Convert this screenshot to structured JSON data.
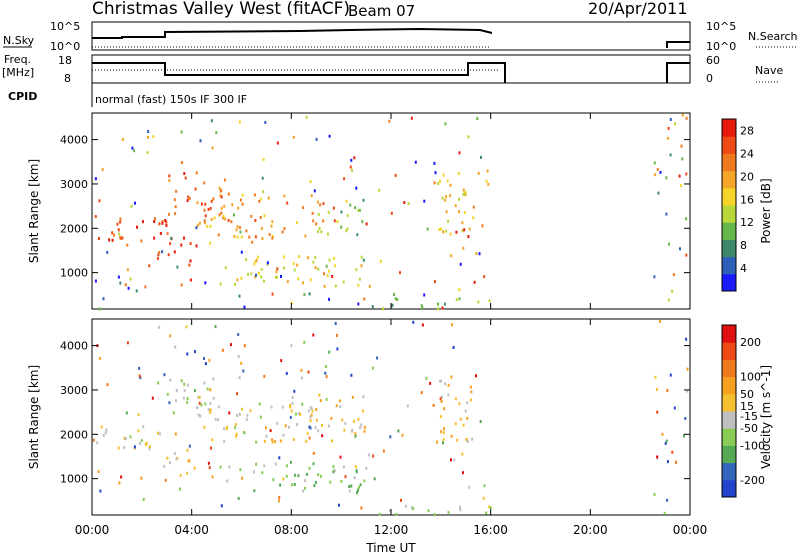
{
  "header": {
    "title": "Christmas Valley West (fitACF)",
    "beam": "Beam 07",
    "date": "20/Apr/2011"
  },
  "top_panels": {
    "nsky_label": "N.Sky",
    "nsky_top_tick": "10^5",
    "nsky_bottom_tick": "10^0",
    "nsearch_label": "N.Search",
    "freq_label_line1": "Freq.",
    "freq_label_line2": "[MHz]",
    "freq_ticks": [
      "18",
      "8"
    ],
    "nave_ticks": [
      "60",
      "0"
    ],
    "nave_label": "Nave",
    "cpid_label": "CPID",
    "cpid_text": "normal (fast)   150s IF   300 IF"
  },
  "colors": {
    "power_scale": [
      "#1a1aff",
      "#2e5fb8",
      "#3c8a6b",
      "#66b84a",
      "#b8d83a",
      "#f5d52a",
      "#f5a52a",
      "#f07a20",
      "#ee4a15",
      "#e61a0a"
    ],
    "velocity_scale": [
      "#2244cc",
      "#3366bb",
      "#55aa55",
      "#88cc55",
      "#c0c0c0",
      "#f5c030",
      "#f5a020",
      "#f07a20",
      "#ee4a15",
      "#e01010"
    ]
  },
  "chart_data": [
    {
      "type": "heatmap",
      "title": "Power",
      "xlabel": "Time UT",
      "ylabel": "Slant Range [km]",
      "x_ticks": [
        "00:00",
        "04:00",
        "08:00",
        "12:00",
        "16:00",
        "20:00",
        "00:00"
      ],
      "xlim_hours": [
        0,
        24
      ],
      "ylim_km": [
        180,
        4600
      ],
      "y_ticks": [
        1000,
        2000,
        3000,
        4000
      ],
      "colorbar": {
        "label": "Power [dB]",
        "ticks": [
          4,
          8,
          12,
          16,
          20,
          24,
          28
        ],
        "range": [
          0,
          30
        ]
      },
      "regions": [
        {
          "t0": 0.0,
          "t1": 2.8,
          "r0": 1700,
          "r1": 2300,
          "value": 26
        },
        {
          "t0": 2.6,
          "t1": 4.2,
          "r0": 1100,
          "r1": 2200,
          "value": 27
        },
        {
          "t0": 3.0,
          "t1": 5.5,
          "r0": 2200,
          "r1": 3300,
          "value": 24
        },
        {
          "t0": 4.2,
          "t1": 9.5,
          "r0": 1800,
          "r1": 2800,
          "value": 21
        },
        {
          "t0": 5.0,
          "t1": 11.0,
          "r0": 700,
          "r1": 1400,
          "value": 16
        },
        {
          "t0": 9.0,
          "t1": 11.0,
          "r0": 1900,
          "r1": 2700,
          "value": 12
        },
        {
          "t0": 13.8,
          "t1": 15.3,
          "r0": 1800,
          "r1": 3400,
          "value": 17
        },
        {
          "t0": 15.4,
          "t1": 16.0,
          "r0": 2800,
          "r1": 3400,
          "value": 20
        },
        {
          "t0": 11.0,
          "t1": 16.0,
          "r0": 200,
          "r1": 450,
          "value": 10
        }
      ]
    },
    {
      "type": "heatmap",
      "title": "Velocity",
      "xlabel": "Time UT",
      "ylabel": "Slant Range [km]",
      "x_ticks": [
        "00:00",
        "04:00",
        "08:00",
        "12:00",
        "16:00",
        "20:00",
        "00:00"
      ],
      "xlim_hours": [
        0,
        24
      ],
      "ylim_km": [
        180,
        4600
      ],
      "y_ticks": [
        1000,
        2000,
        3000,
        4000
      ],
      "colorbar": {
        "label": "Velocity [m s^-1]",
        "ticks": [
          200,
          100,
          50,
          15,
          -15,
          -50,
          -100,
          -200
        ],
        "range": [
          -250,
          250
        ]
      },
      "regions": [
        {
          "t0": 0.0,
          "t1": 2.8,
          "r0": 1700,
          "r1": 2300,
          "value": 0
        },
        {
          "t0": 2.6,
          "t1": 4.2,
          "r0": 1100,
          "r1": 1700,
          "value": 0
        },
        {
          "t0": 3.0,
          "t1": 5.0,
          "r0": 2400,
          "r1": 3300,
          "value": -50
        },
        {
          "t0": 4.2,
          "t1": 9.5,
          "r0": 1800,
          "r1": 2900,
          "value": 0
        },
        {
          "t0": 5.0,
          "t1": 11.0,
          "r0": 700,
          "r1": 1400,
          "value": -80
        },
        {
          "t0": 9.0,
          "t1": 11.0,
          "r0": 2100,
          "r1": 2900,
          "value": 40
        },
        {
          "t0": 13.8,
          "t1": 15.3,
          "r0": 1800,
          "r1": 3400,
          "value": 30
        },
        {
          "t0": 11.0,
          "t1": 16.0,
          "r0": 200,
          "r1": 450,
          "value": -40
        }
      ]
    }
  ]
}
